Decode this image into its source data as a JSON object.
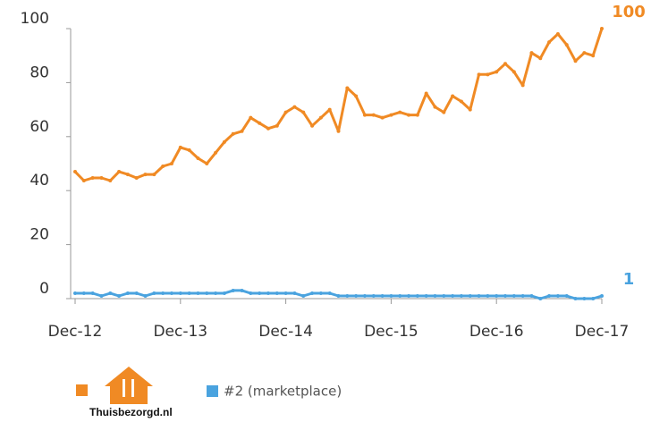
{
  "chart_data": {
    "type": "line",
    "x": [
      "2012-12",
      "2013-01",
      "2013-02",
      "2013-03",
      "2013-04",
      "2013-05",
      "2013-06",
      "2013-07",
      "2013-08",
      "2013-09",
      "2013-10",
      "2013-11",
      "2013-12",
      "2014-01",
      "2014-02",
      "2014-03",
      "2014-04",
      "2014-05",
      "2014-06",
      "2014-07",
      "2014-08",
      "2014-09",
      "2014-10",
      "2014-11",
      "2014-12",
      "2015-01",
      "2015-02",
      "2015-03",
      "2015-04",
      "2015-05",
      "2015-06",
      "2015-07",
      "2015-08",
      "2015-09",
      "2015-10",
      "2015-11",
      "2015-12",
      "2016-01",
      "2016-02",
      "2016-03",
      "2016-04",
      "2016-05",
      "2016-06",
      "2016-07",
      "2016-08",
      "2016-09",
      "2016-10",
      "2016-11",
      "2016-12",
      "2017-01",
      "2017-02",
      "2017-03",
      "2017-04",
      "2017-05",
      "2017-06",
      "2017-07",
      "2017-08",
      "2017-09",
      "2017-10",
      "2017-11",
      "2017-12"
    ],
    "series": [
      {
        "name": "Thuisbezorgd.nl",
        "color": "#f08a24",
        "values": [
          47,
          43.7,
          44.7,
          44.7,
          43.7,
          47,
          46,
          44.7,
          46,
          46,
          49,
          50,
          56,
          55,
          52,
          50,
          54,
          58,
          61,
          62,
          67,
          65,
          63,
          64,
          69,
          71,
          69,
          64,
          67,
          70,
          62,
          78,
          75,
          68,
          68,
          67,
          68,
          69,
          68,
          68,
          76,
          71,
          69,
          75,
          73,
          70,
          83,
          83,
          84,
          87,
          84,
          79,
          91,
          89,
          95,
          98,
          94,
          88,
          91,
          90,
          100
        ]
      },
      {
        "name": "#2 (marketplace)",
        "color": "#4aa3df",
        "values": [
          2,
          2,
          2,
          1,
          2,
          1,
          2,
          2,
          1,
          2,
          2,
          2,
          2,
          2,
          2,
          2,
          2,
          2,
          3,
          3,
          2,
          2,
          2,
          2,
          2,
          2,
          1,
          2,
          2,
          2,
          1,
          1,
          1,
          1,
          1,
          1,
          1,
          1,
          1,
          1,
          1,
          1,
          1,
          1,
          1,
          1,
          1,
          1,
          1,
          1,
          1,
          1,
          1,
          0,
          1,
          1,
          1,
          0,
          0,
          0,
          1
        ]
      }
    ],
    "ylim": [
      0,
      100
    ],
    "yticks": [
      0,
      20,
      40,
      60,
      80,
      100
    ],
    "xticks": [
      {
        "value": "2012-12",
        "label": "Dec-12"
      },
      {
        "value": "2013-12",
        "label": "Dec-13"
      },
      {
        "value": "2014-12",
        "label": "Dec-14"
      },
      {
        "value": "2015-12",
        "label": "Dec-15"
      },
      {
        "value": "2016-12",
        "label": "Dec-16"
      },
      {
        "value": "2017-12",
        "label": "Dec-17"
      }
    ]
  }
}
